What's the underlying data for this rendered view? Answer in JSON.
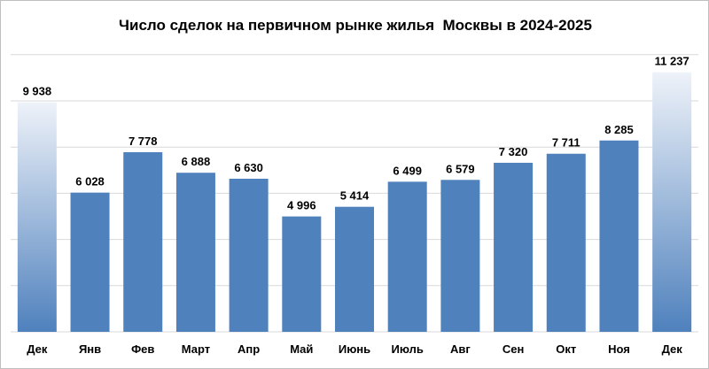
{
  "chart_data": {
    "type": "bar",
    "title": "Число сделок на первичном рынке жилья  Москвы в 2024-2025",
    "xlabel": "",
    "ylabel": "",
    "ylim": [
      0,
      12000
    ],
    "grid": true,
    "categories": [
      "Дек",
      "Янв",
      "Фев",
      "Март",
      "Апр",
      "Май",
      "Июнь",
      "Июль",
      "Авг",
      "Сен",
      "Окт",
      "Ноя",
      "Дек"
    ],
    "values": [
      9938,
      6028,
      7778,
      6888,
      6630,
      4996,
      5414,
      6499,
      6579,
      7320,
      7711,
      8285,
      11237
    ],
    "value_labels": [
      "9 938",
      "6 028",
      "7 778",
      "6 888",
      "6 630",
      "4 996",
      "5 414",
      "6 499",
      "6 579",
      "7 320",
      "7 711",
      "8 285",
      "11 237"
    ],
    "colors": {
      "bar": "#4f81bd",
      "highlight_gradient_top": "#eef2f9",
      "highlight_gradient_bottom": "#4f81bd",
      "grid": "#d9d9d9"
    },
    "highlighted_indices": [
      0,
      12
    ]
  }
}
